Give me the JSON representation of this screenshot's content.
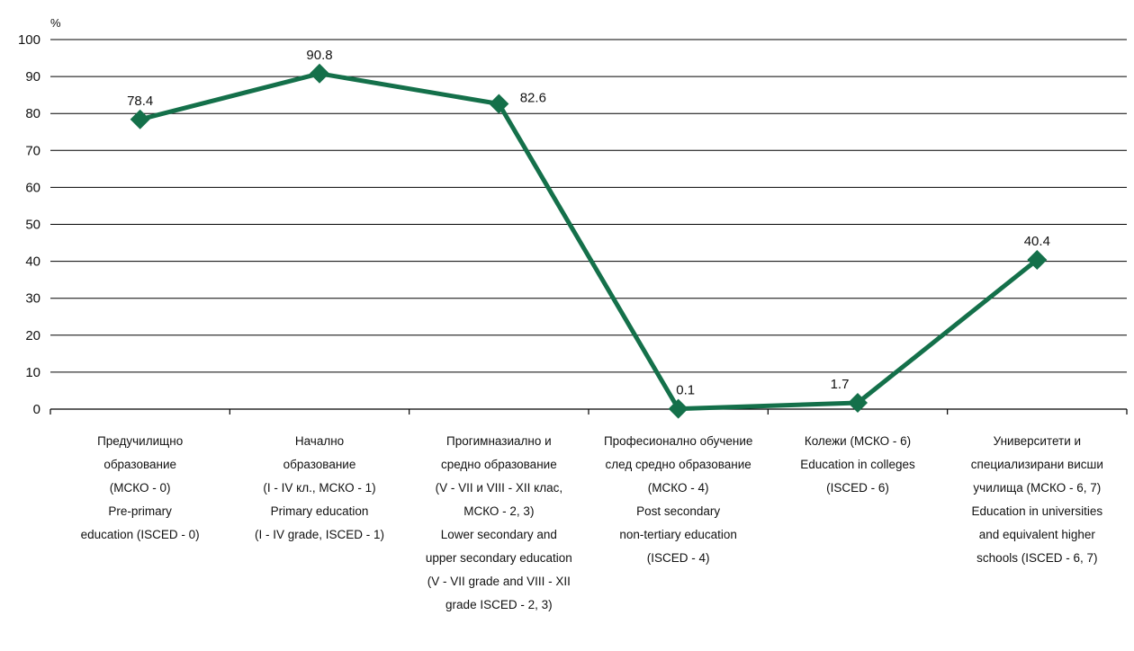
{
  "chart_data": {
    "type": "line",
    "unit_label": "%",
    "ylim": [
      0,
      100
    ],
    "yticks": [
      "0",
      "10",
      "20",
      "30",
      "40",
      "50",
      "60",
      "70",
      "80",
      "90",
      "100"
    ],
    "grid": true,
    "line_color": "#14704a",
    "categories": [
      [
        "Предучилищно",
        "образование",
        "(МСКО - 0)",
        "Pre-primary",
        "education (ISCED - 0)"
      ],
      [
        "Начално",
        "образование",
        "(I - IV кл., МСКО - 1)",
        "Primary education",
        "(I - IV grade, ISCED - 1)"
      ],
      [
        "Прогимназиално и",
        "средно образование",
        "(V - VII и VIII - XII клас,",
        "МСКО - 2, 3)",
        "Lower secondary and",
        "upper secondary education",
        "(V - VII grade and VIII - XII",
        "grade  ISCED - 2, 3)"
      ],
      [
        "Професионално обучение",
        "след средно образование",
        "(МСКО - 4)",
        "Post secondary",
        "non-tertiary education",
        "(ISCED - 4)"
      ],
      [
        "Колежи  (МСКО - 6)",
        "Education in colleges",
        "(ISCED - 6)"
      ],
      [
        "Университети и",
        "специализирани висши",
        "училища (МСКО - 6, 7)",
        "Education in universities",
        "and equivalent higher",
        "schools (ISCED - 6, 7)"
      ]
    ],
    "values": [
      78.4,
      90.8,
      82.6,
      0.1,
      1.7,
      40.4
    ],
    "value_labels": [
      "78.4",
      "90.8",
      "82.6",
      "0.1",
      "1.7",
      "40.4"
    ]
  }
}
